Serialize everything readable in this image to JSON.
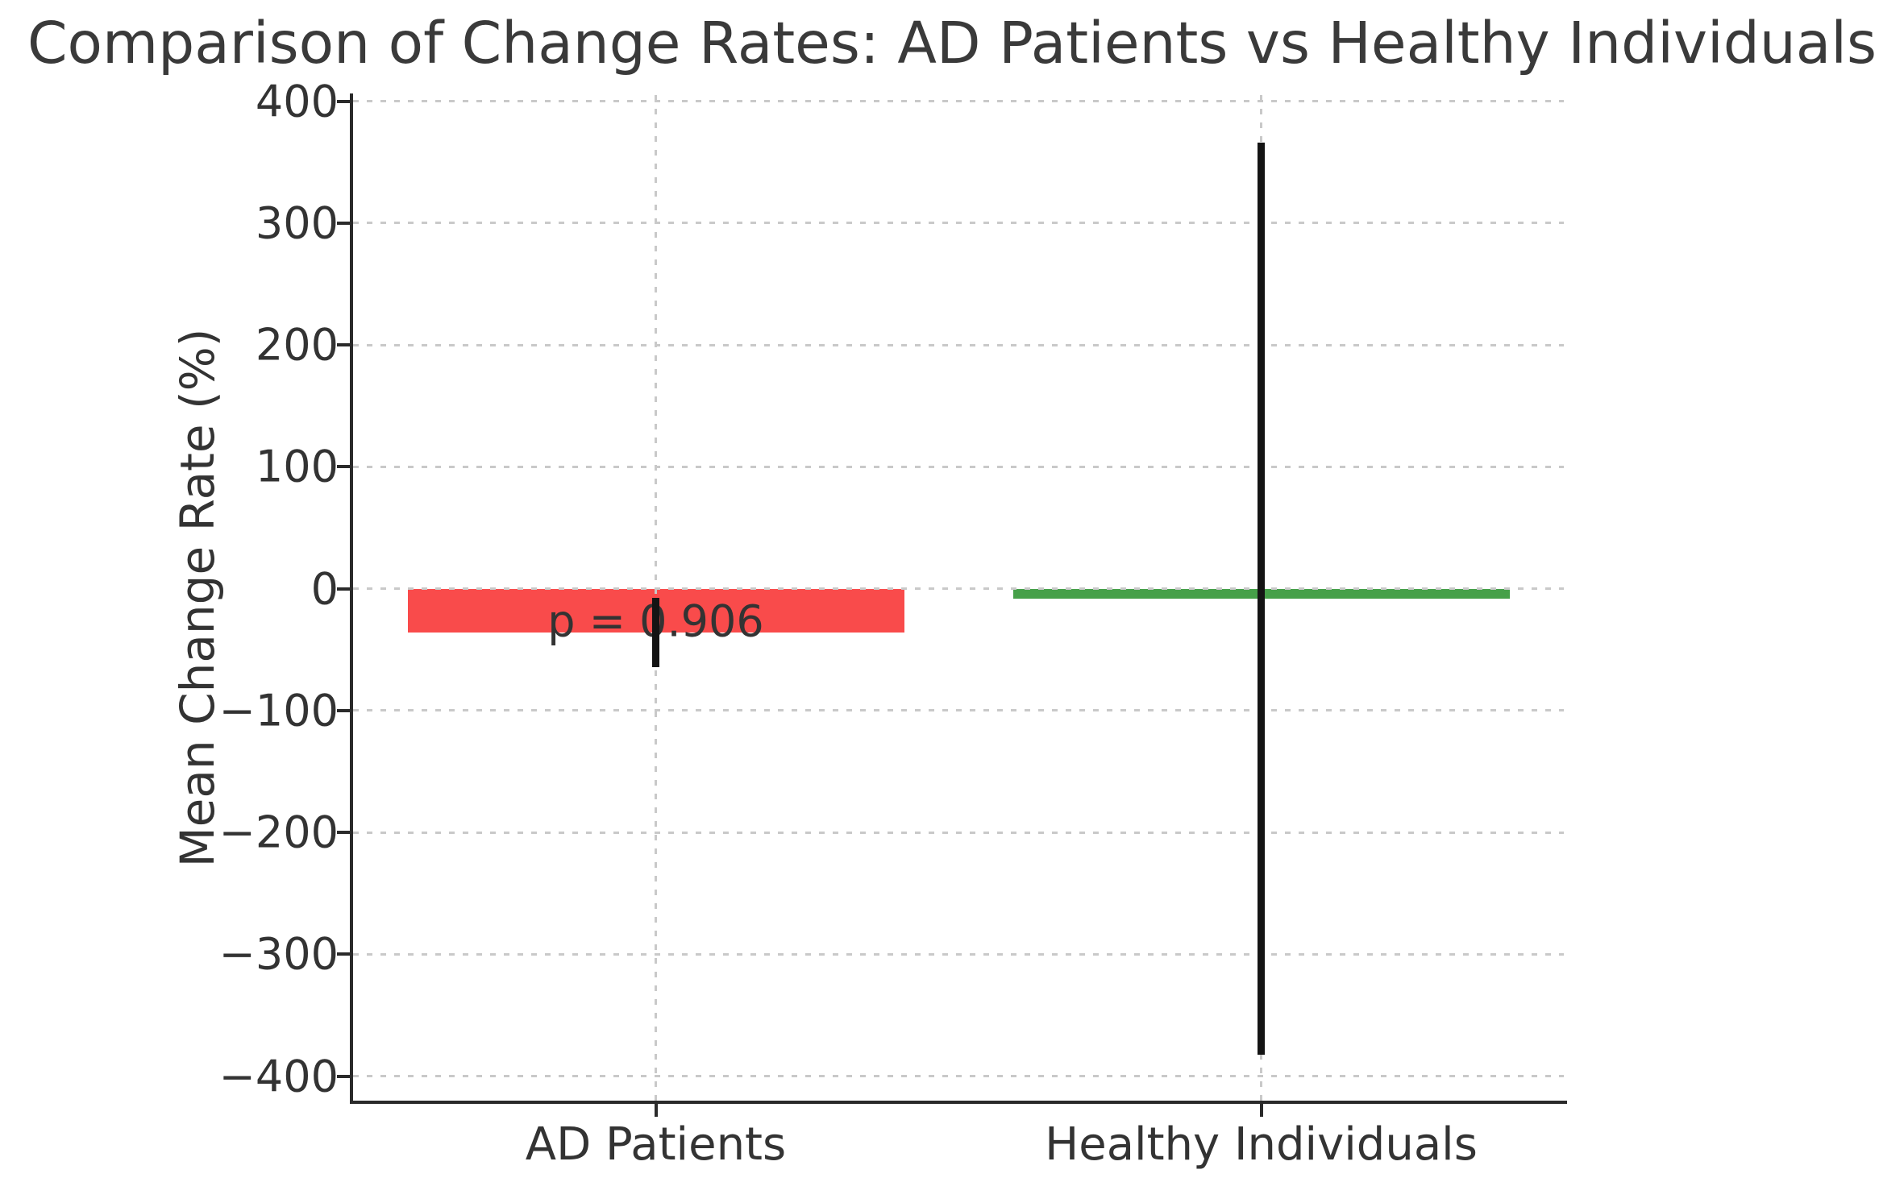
{
  "chart_data": {
    "type": "bar",
    "title": "Comparison of Change Rates: AD Patients vs Healthy Individuals",
    "xlabel": "",
    "ylabel": "Mean Change Rate (%)",
    "categories": [
      "AD Patients",
      "Healthy Individuals"
    ],
    "series": [
      {
        "name": "Mean Change Rate (%)",
        "values": [
          -36,
          -8
        ],
        "errors": [
          28.5,
          374
        ]
      }
    ],
    "bar_colors": [
      "#f94b4b",
      "#46a049"
    ],
    "error_bar_color": "#141414",
    "yticks": [
      400,
      300,
      200,
      100,
      0,
      -100,
      -200,
      -300,
      -400
    ],
    "ylim": [
      -420,
      405
    ],
    "grid": {
      "visible": true,
      "style": "dashed",
      "color": "#c9c9c9",
      "axes": "both",
      "drawn_above_bars": true
    },
    "legend": "none",
    "annotation": {
      "text": "p = 0.906",
      "category_index": 0,
      "y": -27
    },
    "spine_color": "#2a2a2a",
    "background_color": "#ffffff"
  }
}
